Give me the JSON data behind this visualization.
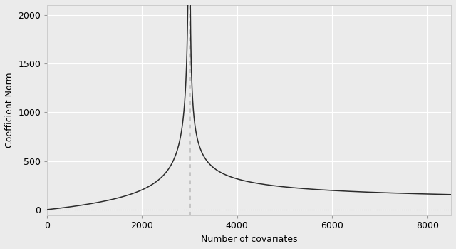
{
  "n_obs": 3000,
  "x_max": 8500,
  "x_min": 0,
  "y_max": 2100,
  "y_min": -60,
  "vline_x": 3000,
  "hline_y": 0,
  "xlabel": "Number of covariates",
  "ylabel": "Coefficient Norm",
  "xticks": [
    0,
    2000,
    4000,
    6000,
    8000
  ],
  "yticks": [
    0,
    500,
    1000,
    1500,
    2000
  ],
  "background_color": "#ebebeb",
  "line_color": "#2b2b2b",
  "grid_color": "#ffffff",
  "vline_color": "#2b2b2b",
  "hline_color": "#aaaaaa",
  "line_width": 1.1,
  "font_size": 9,
  "n_scale": 3000,
  "right_end_value": 150
}
